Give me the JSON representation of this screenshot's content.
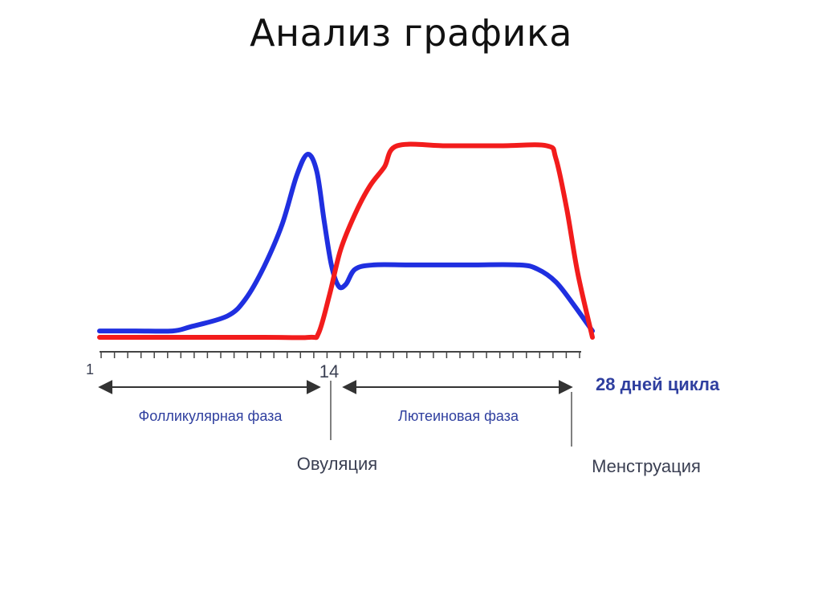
{
  "slide": {
    "title": "Анализ графика"
  },
  "chart_data": {
    "type": "line",
    "x_start_label": "1",
    "ovulation_day_label": "14",
    "x_end_label": "28 дней цикла",
    "xlim": [
      1,
      28
    ],
    "ylim": [
      0,
      1
    ],
    "phases": [
      {
        "label": "Фолликулярная фаза",
        "from": 1,
        "to": 14
      },
      {
        "label": "Лютеиновая фаза",
        "from": 14,
        "to": 28
      }
    ],
    "markers": [
      {
        "label": "Овуляция",
        "day": 14
      },
      {
        "label": "Менструация",
        "day": 28
      }
    ],
    "colors": {
      "blue_curve": "#1f2fe0",
      "red_curve": "#f21c1c",
      "axis": "#444444",
      "labels": "#2f3f9f"
    },
    "series": [
      {
        "color": "#1f2fe0",
        "x": [
          1,
          3,
          5,
          6,
          8,
          9,
          10,
          11,
          11.8,
          12.4,
          12.9,
          13.3,
          13.7,
          14.1,
          14.5,
          15,
          16,
          18,
          21,
          24,
          25,
          26,
          27,
          28
        ],
        "y": [
          0.03,
          0.03,
          0.03,
          0.05,
          0.1,
          0.18,
          0.33,
          0.53,
          0.76,
          0.86,
          0.78,
          0.55,
          0.34,
          0.24,
          0.25,
          0.32,
          0.34,
          0.34,
          0.34,
          0.34,
          0.32,
          0.26,
          0.15,
          0.03
        ]
      },
      {
        "color": "#f21c1c",
        "x": [
          1,
          5,
          10,
          12.5,
          13,
          13.6,
          14.2,
          15,
          15.8,
          16.6,
          17.3,
          20,
          23,
          25.5,
          26,
          26.6,
          27.2,
          28
        ],
        "y": [
          0.0,
          0.0,
          0.0,
          0.0,
          0.02,
          0.2,
          0.41,
          0.58,
          0.71,
          0.8,
          0.9,
          0.9,
          0.9,
          0.9,
          0.84,
          0.6,
          0.3,
          0.0
        ]
      }
    ]
  }
}
